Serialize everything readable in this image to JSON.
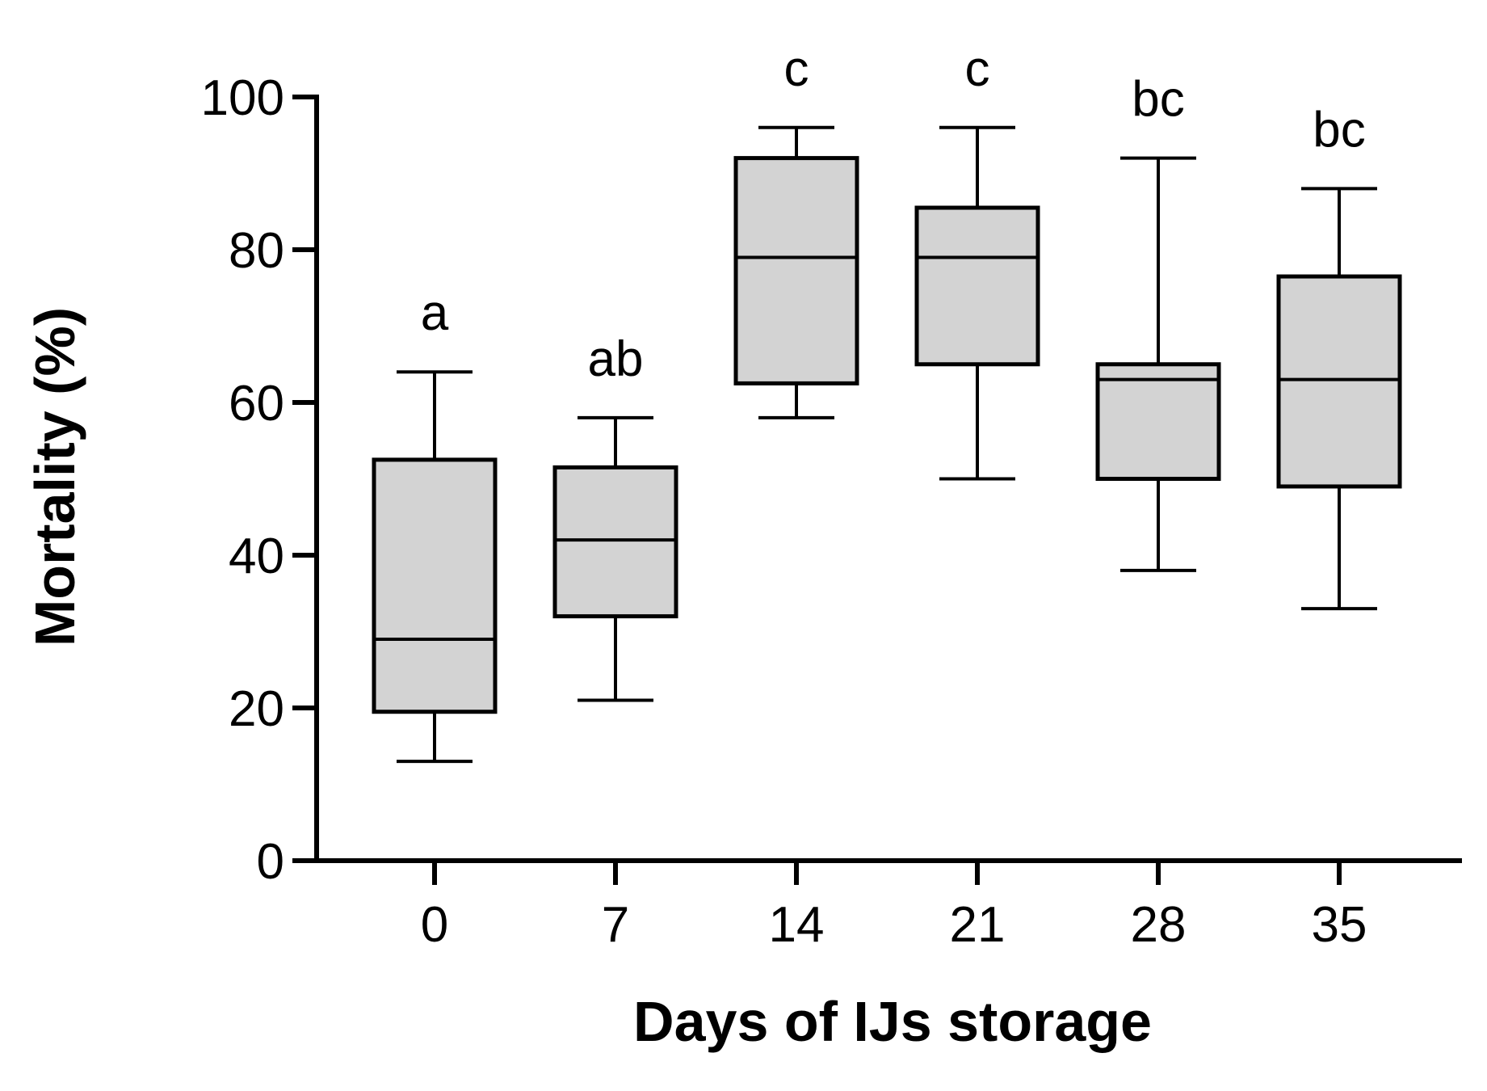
{
  "chart_data": {
    "type": "box",
    "xlabel": "Days of IJs storage",
    "ylabel": "Mortality (%)",
    "ylim": [
      0,
      100
    ],
    "yticks": [
      0,
      20,
      40,
      60,
      80,
      100
    ],
    "grid": false,
    "box_fill": "#d3d3d3",
    "stroke_color": "#000000",
    "categories": [
      "0",
      "7",
      "14",
      "21",
      "28",
      "35"
    ],
    "boxes": [
      {
        "category": "0",
        "min": 13,
        "q1": 19.5,
        "median": 29,
        "q3": 52.5,
        "max": 64,
        "label": "a"
      },
      {
        "category": "7",
        "min": 21,
        "q1": 32,
        "median": 42,
        "q3": 51.5,
        "max": 58,
        "label": "ab"
      },
      {
        "category": "14",
        "min": 58,
        "q1": 62.5,
        "median": 79,
        "q3": 92,
        "max": 96,
        "label": "c"
      },
      {
        "category": "21",
        "min": 50,
        "q1": 65,
        "median": 79,
        "q3": 85.5,
        "max": 96,
        "label": "c"
      },
      {
        "category": "28",
        "min": 38,
        "q1": 50,
        "median": 63,
        "q3": 65,
        "max": 92,
        "label": "bc"
      },
      {
        "category": "35",
        "min": 33,
        "q1": 49,
        "median": 63,
        "q3": 76.5,
        "max": 88,
        "label": "bc"
      }
    ]
  }
}
